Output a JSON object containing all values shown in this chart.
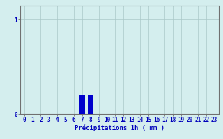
{
  "hours": [
    0,
    1,
    2,
    3,
    4,
    5,
    6,
    7,
    8,
    9,
    10,
    11,
    12,
    13,
    14,
    15,
    16,
    17,
    18,
    19,
    20,
    21,
    22,
    23
  ],
  "values": [
    0,
    0,
    0,
    0,
    0,
    0,
    0,
    0.2,
    0.2,
    0,
    0,
    0,
    0,
    0,
    0,
    0,
    0,
    0,
    0,
    0,
    0,
    0,
    0,
    0
  ],
  "bar_color": "#0000cc",
  "background_color": "#d4eeee",
  "grid_color": "#aac8c8",
  "axis_color": "#707070",
  "text_color": "#0000bb",
  "title": "Précipitations 1h ( mm )",
  "ylim_max": 1.15,
  "yticks": [
    0,
    1
  ],
  "xlim": [
    -0.5,
    23.5
  ],
  "xlabel_fontsize": 6.5,
  "tick_fontsize": 5.5,
  "bar_width": 0.7
}
